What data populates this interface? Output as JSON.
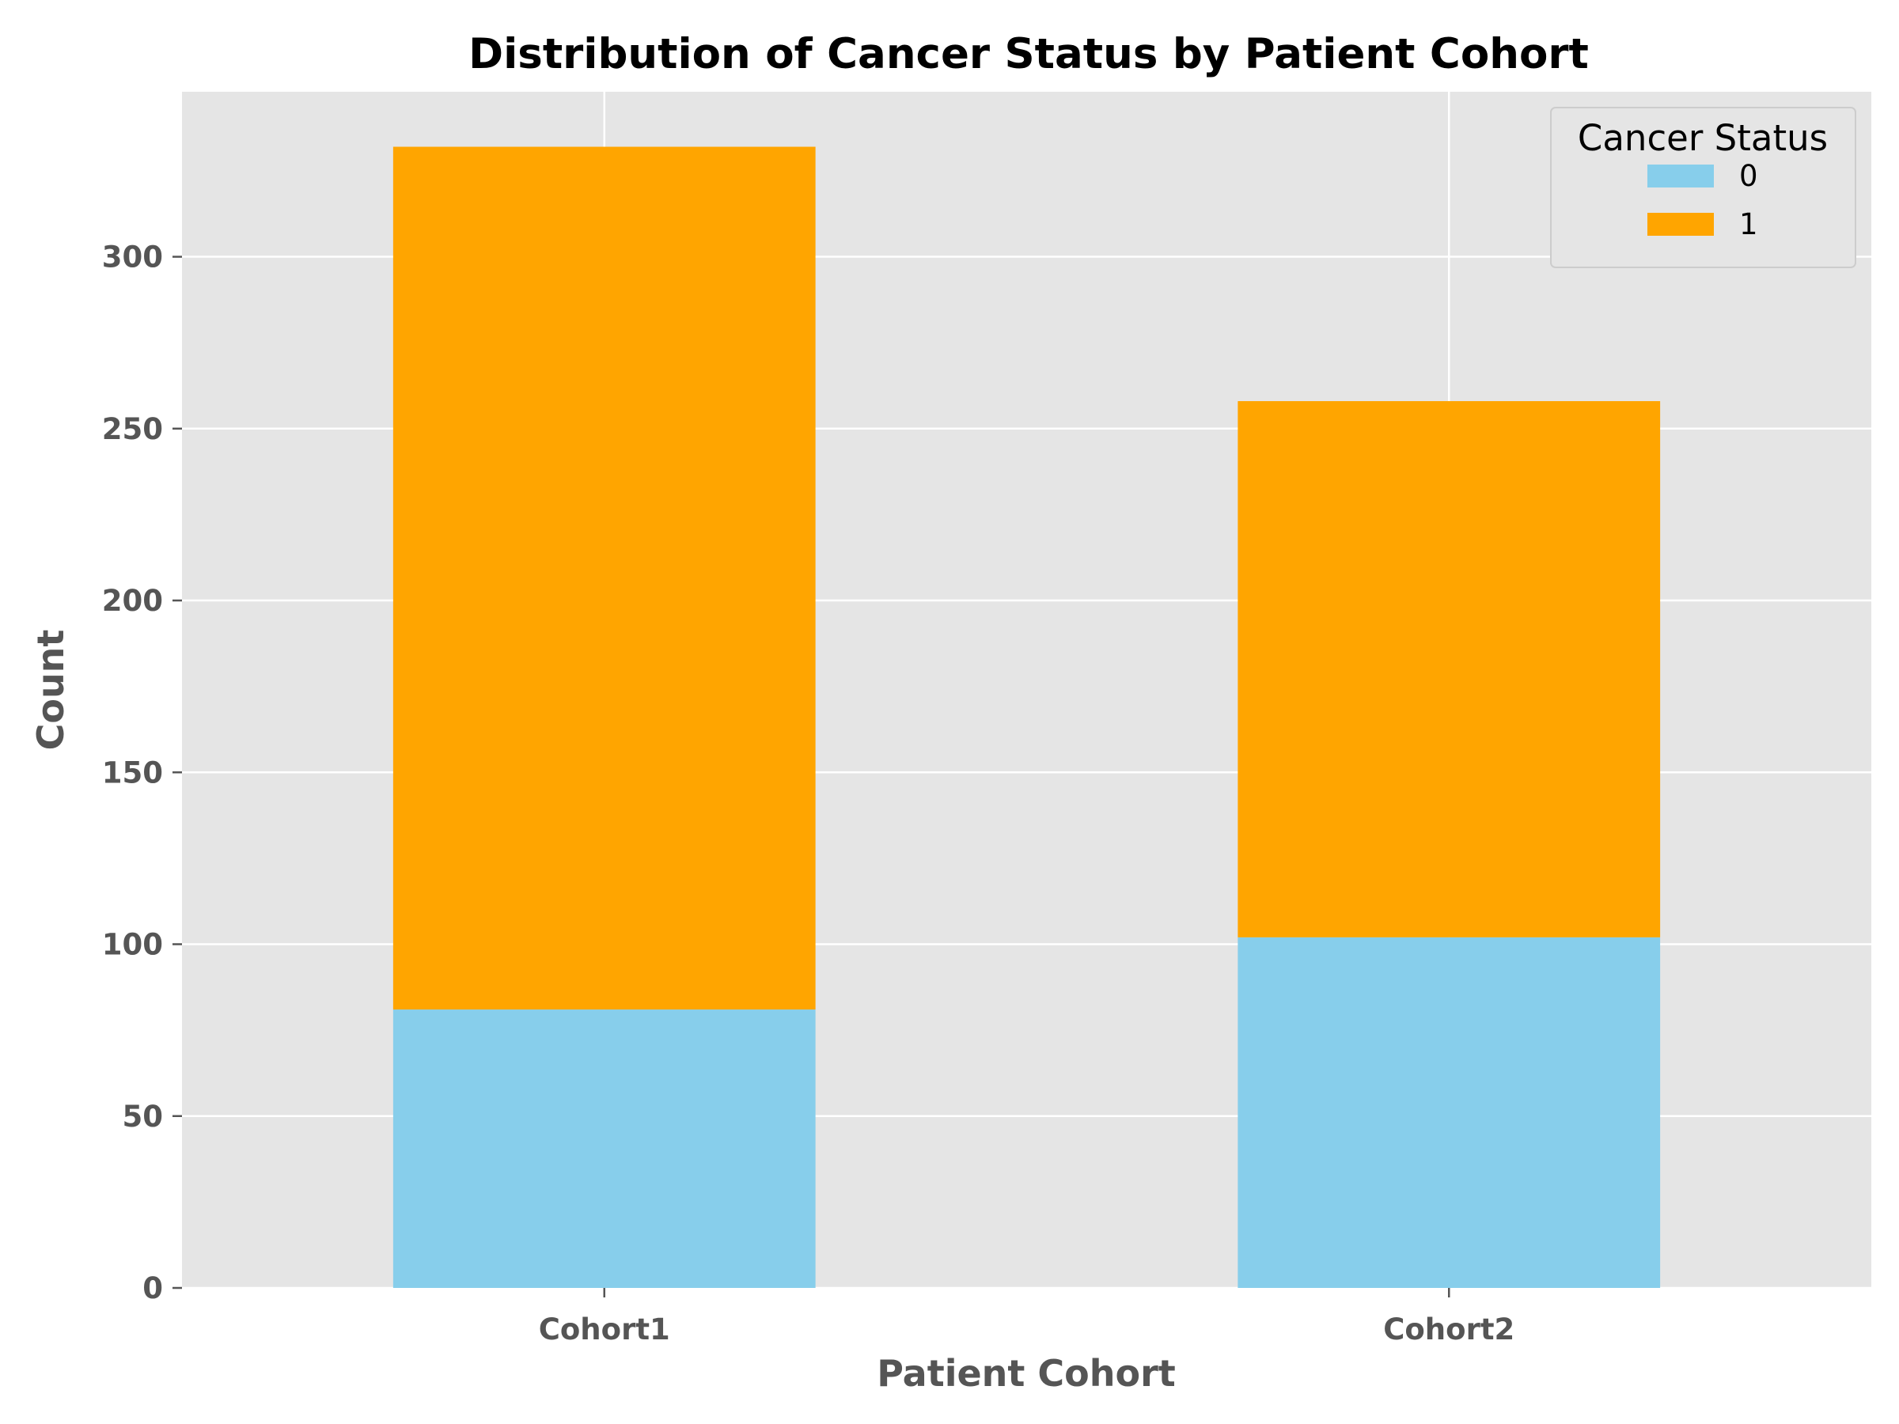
{
  "chart_data": {
    "type": "bar",
    "stacked": true,
    "title": "Distribution of Cancer Status by Patient Cohort",
    "xlabel": "Patient Cohort",
    "ylabel": "Count",
    "categories": [
      "Cohort1",
      "Cohort2"
    ],
    "series": [
      {
        "name": "0",
        "values": [
          81,
          102
        ],
        "color": "#87CEEB"
      },
      {
        "name": "1",
        "values": [
          251,
          156
        ],
        "color": "#FFA500"
      }
    ],
    "ylim": [
      0,
      348
    ],
    "yticks": [
      0,
      50,
      100,
      150,
      200,
      250,
      300
    ],
    "grid": true,
    "background": "#E5E5E5",
    "legend": {
      "title": "Cancer Status",
      "position": "top-right"
    }
  }
}
